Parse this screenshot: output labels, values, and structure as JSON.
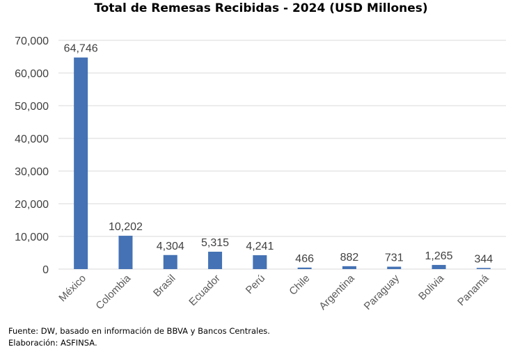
{
  "chart_data": {
    "type": "bar",
    "title": "Total de Remesas Recibidas - 2024 (USD Millones)",
    "xlabel": "",
    "ylabel": "",
    "categories": [
      "México",
      "Colombia",
      "Brasil",
      "Ecuador",
      "Perú",
      "Chile",
      "Argentina",
      "Paraguay",
      "Bolivia",
      "Panamá"
    ],
    "values": [
      64746,
      10202,
      4304,
      5315,
      4241,
      466,
      882,
      731,
      1265,
      344
    ],
    "data_labels": [
      "64,746",
      "10,202",
      "4,304",
      "5,315",
      "4,241",
      "466",
      "882",
      "731",
      "1,265",
      "344"
    ],
    "ylim": [
      0,
      70000
    ],
    "yticks": [
      0,
      10000,
      20000,
      30000,
      40000,
      50000,
      60000,
      70000
    ],
    "ytick_labels": [
      "0",
      "10,000",
      "20,000",
      "30,000",
      "40,000",
      "50,000",
      "60,000",
      "70,000"
    ],
    "grid": true,
    "legend": "none",
    "bar_color": "#4472B4",
    "grid_color": "#D9D9D9"
  },
  "footer": {
    "source": "Fuente: DW, basado en información de BBVA y Bancos Centrales.",
    "credit": "Elaboración: ASFINSA."
  }
}
